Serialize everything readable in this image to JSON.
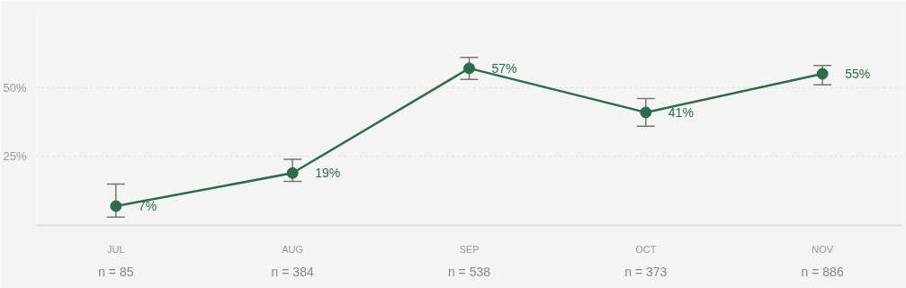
{
  "chart_data": {
    "type": "line",
    "categories": [
      "JUL",
      "AUG",
      "SEP",
      "OCT",
      "NOV"
    ],
    "series": [
      {
        "color": "#2e6b4b",
        "values": [
          7,
          19,
          57,
          41,
          55
        ],
        "value_labels": [
          "7%",
          "19%",
          "57%",
          "41%",
          "55%"
        ],
        "errors": [
          [
            3,
            15
          ],
          [
            16,
            24
          ],
          [
            53,
            61
          ],
          [
            36,
            46
          ],
          [
            51,
            58
          ]
        ]
      }
    ],
    "ylim": [
      0,
      79
    ],
    "yticks": [
      {
        "value": 0,
        "label": null
      },
      {
        "value": 25,
        "label": "25%"
      },
      {
        "value": 50,
        "label": "50%"
      }
    ],
    "grid": "y",
    "marker": "circle",
    "line_style": "solid",
    "annotations": [
      "n = 85",
      "n = 384",
      "n = 538",
      "n = 373",
      "n = 886"
    ]
  }
}
